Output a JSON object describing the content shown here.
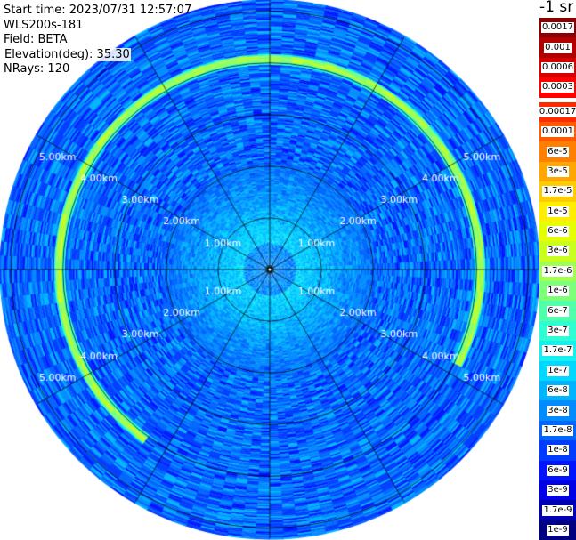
{
  "header": {
    "start_time": "Start time: 2023/07/31 12:57:07",
    "instrument": "WLS200s-181",
    "field": "Field: BETA",
    "elevation": "Elevation(deg): 35.30",
    "nrays": "NRays: 120"
  },
  "colorbar": {
    "units": "-1 sr",
    "top_group": [
      {
        "label": "0.0017",
        "color": "#8b0000"
      },
      {
        "label": "0.001",
        "color": "#b00000"
      },
      {
        "label": "0.0006",
        "color": "#d60000"
      },
      {
        "label": "0.0003",
        "color": "#ff0000"
      }
    ],
    "main_group": [
      {
        "label": "0.00017",
        "color": "#ff2a00"
      },
      {
        "label": "0.0001",
        "color": "#ff5a00"
      },
      {
        "label": "6e-5",
        "color": "#ff8000"
      },
      {
        "label": "3e-5",
        "color": "#ffa600"
      },
      {
        "label": "1.7e-5",
        "color": "#ffcc00"
      },
      {
        "label": "1e-5",
        "color": "#ffee00"
      },
      {
        "label": "6e-6",
        "color": "#e6ff00"
      },
      {
        "label": "3e-6",
        "color": "#c8ff1e"
      },
      {
        "label": "1.7e-6",
        "color": "#a0ff50"
      },
      {
        "label": "1e-6",
        "color": "#7dff7a"
      },
      {
        "label": "6e-7",
        "color": "#50ffaa"
      },
      {
        "label": "3e-7",
        "color": "#2dffd2"
      },
      {
        "label": "1.7e-7",
        "color": "#14f0f0"
      },
      {
        "label": "1e-7",
        "color": "#00d8ff"
      },
      {
        "label": "6e-8",
        "color": "#00b4ff"
      },
      {
        "label": "3e-8",
        "color": "#008cff"
      },
      {
        "label": "1.7e-8",
        "color": "#0064ff"
      },
      {
        "label": "1e-8",
        "color": "#003cff"
      },
      {
        "label": "6e-9",
        "color": "#0014ff"
      },
      {
        "label": "3e-9",
        "color": "#0000e6"
      },
      {
        "label": "1.7e-9",
        "color": "#0000b4"
      },
      {
        "label": "1e-9",
        "color": "#000080"
      }
    ]
  },
  "chart_data": {
    "type": "heatmap",
    "projection": "polar (plan position indicator)",
    "n_rays": 120,
    "grid": true,
    "range_rings_km": [
      1,
      2,
      3,
      4,
      5
    ],
    "ring_labels": [
      "1.00km",
      "2.00km",
      "3.00km",
      "4.00km",
      "5.00km"
    ],
    "azimuth_spokes_deg": [
      0,
      30,
      60,
      90,
      120,
      150,
      180,
      210,
      240,
      270,
      300,
      330
    ],
    "max_range_km": 5.2,
    "background_level": "1.7e-8",
    "inner_level": "1e-7",
    "ring_feature": {
      "range_km": 4.05,
      "level": "3e-6",
      "azimuth_gap_deg": [
        115,
        215
      ]
    }
  }
}
